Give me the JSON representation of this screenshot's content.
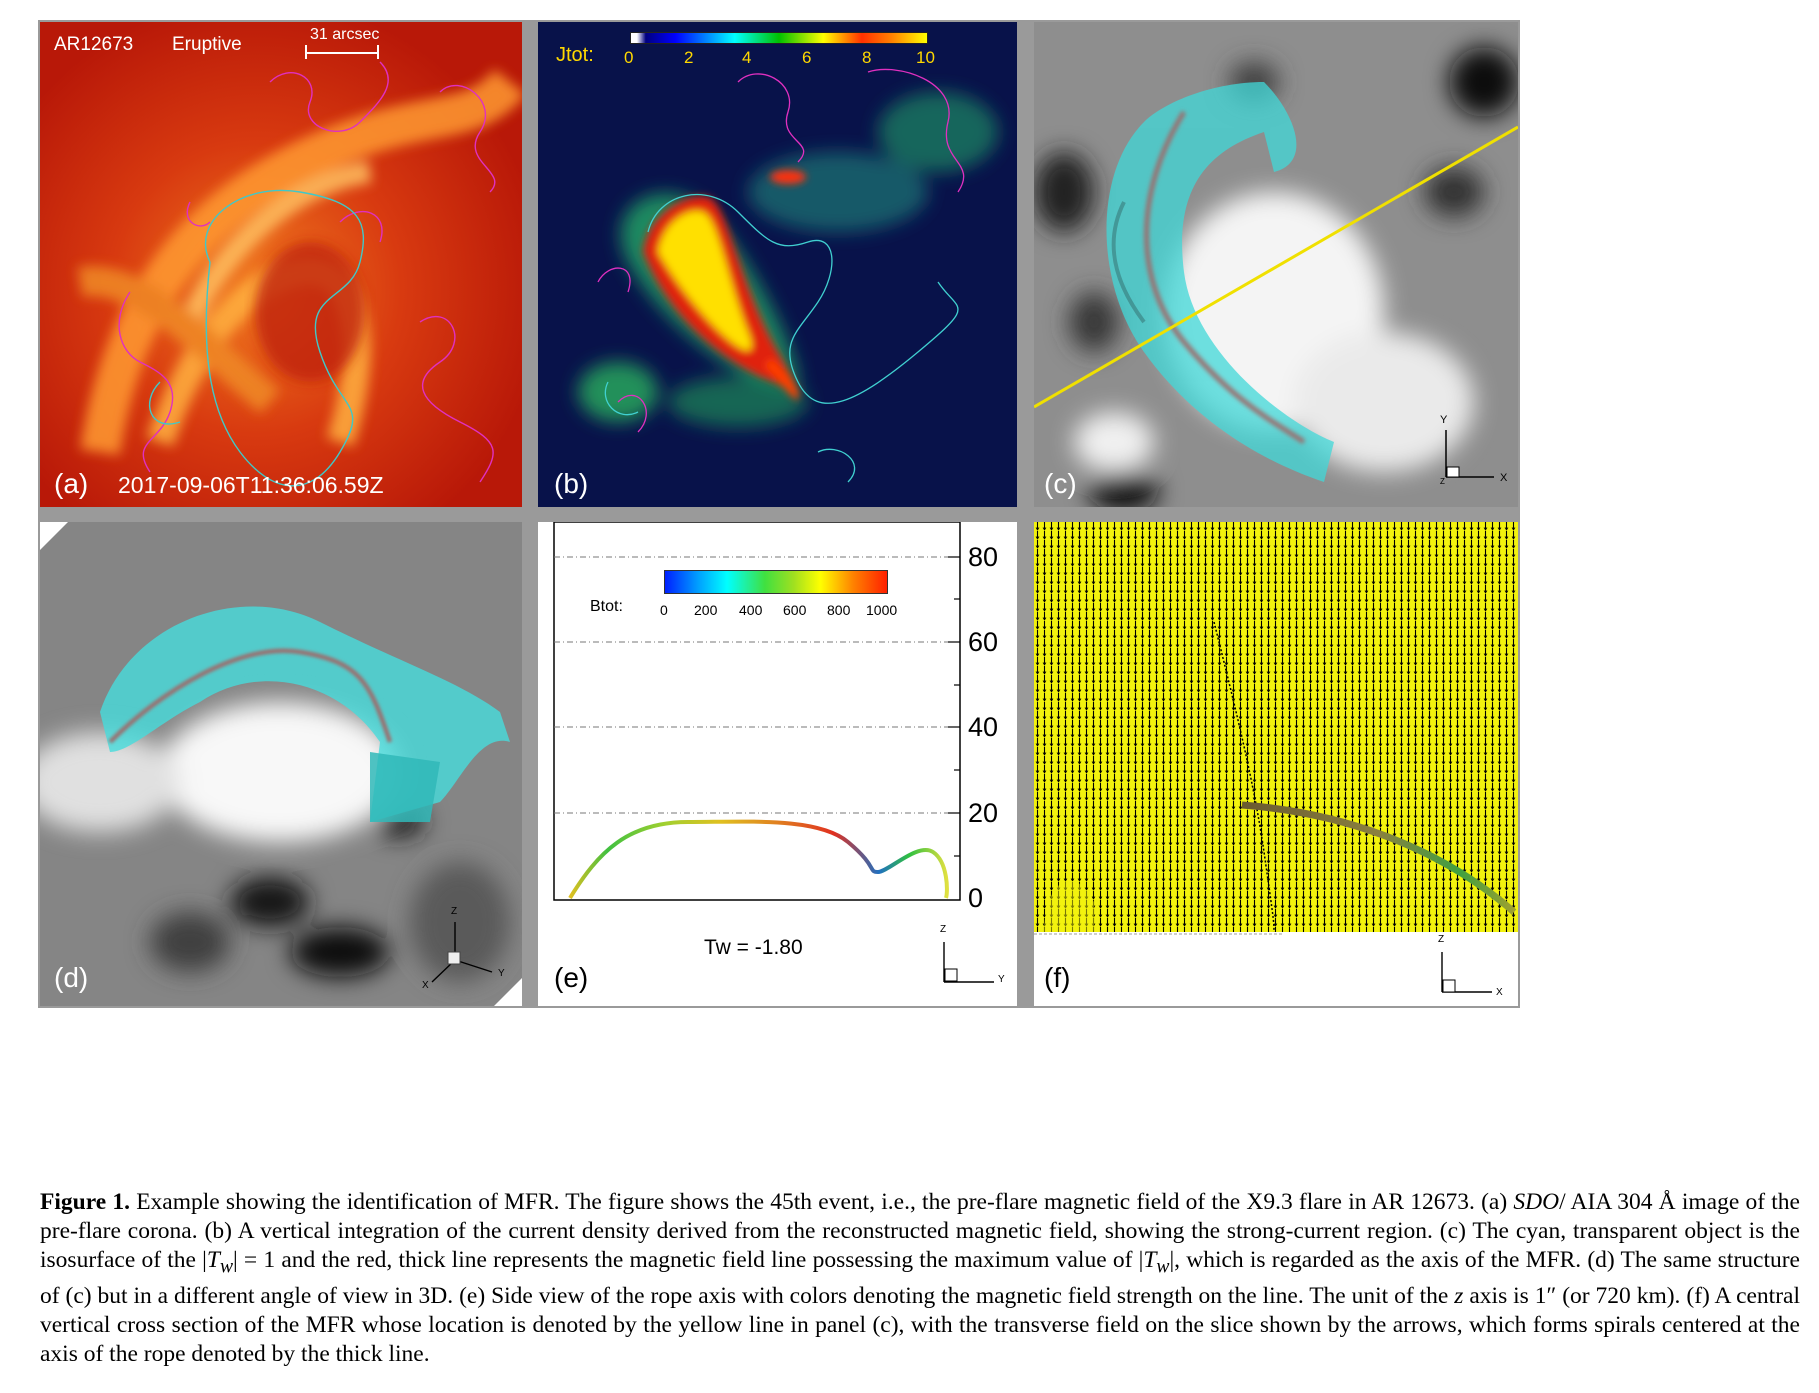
{
  "panels": {
    "a": {
      "label": "(a)",
      "region": "AR12673",
      "event_type": "Eruptive",
      "scale_label": "31 arcsec",
      "timestamp": "2017-09-06T11:36:06.59Z"
    },
    "b": {
      "label": "(b)",
      "colorbar_title": "Jtot:",
      "colorbar_ticks": [
        "0",
        "2",
        "4",
        "6",
        "8",
        "10"
      ]
    },
    "c": {
      "label": "(c)",
      "axis_y": "Y",
      "axis_x": "X",
      "axis_z": "Z"
    },
    "d": {
      "label": "(d)",
      "axis_z": "Z",
      "axis_x": "X",
      "axis_y": "Y"
    },
    "e": {
      "label": "(e)",
      "colorbar_title": "Btot:",
      "colorbar_ticks": [
        "0",
        "200",
        "400",
        "600",
        "800",
        "1000"
      ],
      "z_ticks": [
        "0",
        "20",
        "40",
        "60",
        "80"
      ],
      "twist": "Tw = -1.80",
      "axis_z": "Z",
      "axis_y": "Y"
    },
    "f": {
      "label": "(f)",
      "axis_z": "Z",
      "axis_x": "X"
    }
  },
  "caption": {
    "figure_label": "Figure 1.",
    "p1": " Example showing the identification of MFR. The figure shows the 45th event, i.e., the pre-flare magnetic field of the X9.3 flare in AR 12673. (a) ",
    "sdo": "SDO",
    "p2": "/ AIA 304 Å image of the pre-flare corona. (b) A vertical integration of the current density derived from the reconstructed magnetic field, showing the strong-current region. (c) The cyan, transparent object is the isosurface of the |",
    "tw1": "T",
    "tw1sub": "w",
    "p3": "| = 1 and the red, thick line represents the magnetic field line possessing the maximum value of |",
    "tw2": "T",
    "tw2sub": "w",
    "p4": "|, which is regarded as the axis of the MFR. (d) The same structure of (c) but in a different angle of view in 3D. (e) Side view of the rope axis with colors denoting the magnetic field strength on the line. The unit of the ",
    "zvar": "z",
    "p5": " axis is 1″ (or 720 km). (f) A central vertical cross section of the MFR whose location is denoted by the yellow line in panel (c), with the transverse field on the slice shown by the arrows, which forms spirals centered at the axis of the rope denoted by the thick line."
  }
}
